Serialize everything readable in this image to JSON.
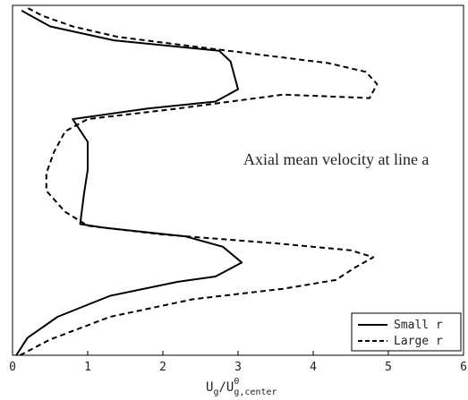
{
  "chart_data": {
    "type": "line",
    "xlim": [
      0,
      6
    ],
    "ylim": [
      0,
      1
    ],
    "x_ticks": [
      "0",
      "1",
      "2",
      "3",
      "4",
      "5",
      "6"
    ],
    "xlabel": {
      "base": "U",
      "sub1": "g",
      "slash": "/U",
      "sup": "0",
      "sub2": "g,center"
    },
    "annotation": "Axial mean velocity at line a",
    "legend": {
      "position": "bottom-right"
    },
    "grid": false,
    "series": [
      {
        "name": "Small r",
        "style": "solid",
        "color": "#000000",
        "points": [
          [
            0.05,
            0.0
          ],
          [
            0.2,
            0.05
          ],
          [
            0.6,
            0.11
          ],
          [
            1.3,
            0.17
          ],
          [
            2.2,
            0.21
          ],
          [
            2.7,
            0.225
          ],
          [
            3.05,
            0.265
          ],
          [
            2.8,
            0.31
          ],
          [
            2.3,
            0.34
          ],
          [
            1.2,
            0.365
          ],
          [
            0.9,
            0.375
          ],
          [
            0.95,
            0.46
          ],
          [
            1.0,
            0.53
          ],
          [
            1.0,
            0.61
          ],
          [
            0.8,
            0.675
          ],
          [
            1.8,
            0.705
          ],
          [
            2.7,
            0.725
          ],
          [
            3.0,
            0.76
          ],
          [
            2.9,
            0.84
          ],
          [
            2.75,
            0.87
          ],
          [
            1.35,
            0.9
          ],
          [
            0.5,
            0.94
          ],
          [
            0.12,
            0.985
          ]
        ]
      },
      {
        "name": "Large r",
        "style": "dashed",
        "color": "#000000",
        "points": [
          [
            0.1,
            0.0
          ],
          [
            0.5,
            0.045
          ],
          [
            1.3,
            0.11
          ],
          [
            2.4,
            0.16
          ],
          [
            3.6,
            0.19
          ],
          [
            4.3,
            0.215
          ],
          [
            4.55,
            0.25
          ],
          [
            4.8,
            0.28
          ],
          [
            4.5,
            0.3
          ],
          [
            3.5,
            0.32
          ],
          [
            2.0,
            0.345
          ],
          [
            1.0,
            0.37
          ],
          [
            0.7,
            0.41
          ],
          [
            0.45,
            0.47
          ],
          [
            0.45,
            0.52
          ],
          [
            0.55,
            0.58
          ],
          [
            0.7,
            0.64
          ],
          [
            1.0,
            0.675
          ],
          [
            2.2,
            0.705
          ],
          [
            3.6,
            0.745
          ],
          [
            4.75,
            0.735
          ],
          [
            4.85,
            0.775
          ],
          [
            4.7,
            0.81
          ],
          [
            4.2,
            0.835
          ],
          [
            2.5,
            0.88
          ],
          [
            1.4,
            0.91
          ],
          [
            0.8,
            0.94
          ],
          [
            0.4,
            0.97
          ],
          [
            0.18,
            0.995
          ]
        ]
      }
    ]
  }
}
